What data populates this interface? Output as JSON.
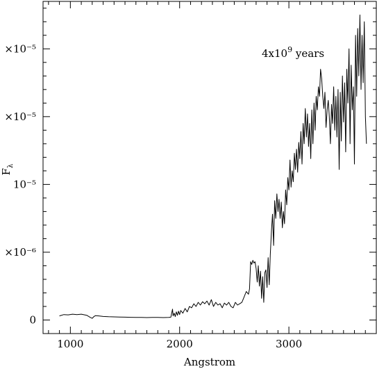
{
  "chart_data": {
    "type": "line",
    "annotation": "4x10^9 years",
    "xlabel": "Angstrom",
    "ylabel": "F_λ",
    "xlim": [
      750,
      3800
    ],
    "ylim": [
      -1e-06,
      2.35e-05
    ],
    "grid": false,
    "x_ticks": [
      1000,
      2000,
      3000
    ],
    "y_ticks": [
      0,
      5e-06,
      1e-05,
      1.5e-05,
      2e-05
    ],
    "x_tick_labels": [
      "1000",
      "2000",
      "3000"
    ],
    "y_tick_labels": [
      "0",
      "×10⁻⁶",
      "10⁻⁵",
      "×10⁻⁵",
      "×10⁻⁵"
    ],
    "series": [
      {
        "color": "#000000",
        "x": [
          900,
          940,
          980,
          1020,
          1060,
          1100,
          1150,
          1180,
          1200,
          1215,
          1230,
          1260,
          1300,
          1350,
          1400,
          1450,
          1500,
          1550,
          1600,
          1650,
          1700,
          1750,
          1800,
          1850,
          1900,
          1920,
          1935,
          1940,
          1950,
          1960,
          1970,
          1980,
          1990,
          2000,
          2010,
          2030,
          2050,
          2070,
          2090,
          2110,
          2130,
          2150,
          2170,
          2190,
          2210,
          2230,
          2250,
          2270,
          2290,
          2310,
          2330,
          2350,
          2370,
          2390,
          2410,
          2430,
          2450,
          2470,
          2490,
          2510,
          2530,
          2550,
          2570,
          2590,
          2610,
          2630,
          2640,
          2650,
          2660,
          2670,
          2680,
          2690,
          2700,
          2710,
          2720,
          2730,
          2740,
          2750,
          2760,
          2770,
          2780,
          2790,
          2800,
          2810,
          2820,
          2830,
          2840,
          2850,
          2860,
          2870,
          2880,
          2890,
          2900,
          2910,
          2920,
          2930,
          2940,
          2950,
          2960,
          2970,
          2980,
          2990,
          3000,
          3010,
          3020,
          3030,
          3040,
          3050,
          3060,
          3070,
          3080,
          3090,
          3100,
          3110,
          3120,
          3130,
          3140,
          3150,
          3160,
          3170,
          3180,
          3190,
          3200,
          3210,
          3220,
          3230,
          3240,
          3250,
          3260,
          3270,
          3280,
          3290,
          3300,
          3310,
          3320,
          3330,
          3340,
          3350,
          3360,
          3370,
          3380,
          3390,
          3400,
          3410,
          3420,
          3430,
          3440,
          3450,
          3460,
          3470,
          3480,
          3490,
          3500,
          3510,
          3520,
          3530,
          3540,
          3550,
          3560,
          3570,
          3580,
          3590,
          3600,
          3610,
          3620,
          3630,
          3640,
          3650,
          3660,
          3670,
          3680,
          3690,
          3700,
          3710
        ],
        "y": [
          3e-07,
          4e-07,
          3.8e-07,
          4.3e-07,
          4e-07,
          4.3e-07,
          3.5e-07,
          2e-07,
          1.2e-07,
          2.5e-07,
          3.2e-07,
          3e-07,
          2.6e-07,
          2.4e-07,
          2.3e-07,
          2.2e-07,
          2.1e-07,
          2e-07,
          1.9e-07,
          1.9e-07,
          1.8e-07,
          1.9e-07,
          1.9e-07,
          1.8e-07,
          1.9e-07,
          2.1e-07,
          8e-07,
          3e-07,
          5e-07,
          2.5e-07,
          6e-07,
          3.5e-07,
          6.5e-07,
          4e-07,
          7e-07,
          5e-07,
          8.5e-07,
          6e-07,
          1e-06,
          9e-07,
          1.2e-06,
          1e-06,
          1.3e-06,
          1.1e-06,
          1.35e-06,
          1.2e-06,
          1.4e-06,
          1.1e-06,
          1.5e-06,
          1e-06,
          1.3e-06,
          1.1e-06,
          1.2e-06,
          9e-07,
          1.25e-06,
          1.1e-06,
          1.3e-06,
          1e-06,
          9e-07,
          1.3e-06,
          1.1e-06,
          1.2e-06,
          1.3e-06,
          1.7e-06,
          2.1e-06,
          1.9e-06,
          2.3e-06,
          4.3e-06,
          4.1e-06,
          4.4e-06,
          4.2e-06,
          4.3e-06,
          3.8e-06,
          2.8e-06,
          4e-06,
          2.5e-06,
          3.6e-06,
          1.6e-06,
          3.2e-06,
          1.3e-06,
          3.5e-06,
          3.7e-06,
          2.4e-06,
          4.6e-06,
          2.6e-06,
          4.8e-06,
          6.5e-06,
          7.8e-06,
          5.5e-06,
          8.8e-06,
          7.5e-06,
          9.3e-06,
          8e-06,
          8.9e-06,
          7.5e-06,
          8.7e-06,
          6.8e-06,
          8e-06,
          7.1e-06,
          9.6e-06,
          8.5e-06,
          1.05e-05,
          9.6e-06,
          1.18e-05,
          9.8e-06,
          1.1e-05,
          1.02e-05,
          1.23e-05,
          1.11e-05,
          1.26e-05,
          1.09e-05,
          1.31e-05,
          1.19e-05,
          1.39e-05,
          1.15e-05,
          1.45e-05,
          1.3e-05,
          1.56e-05,
          1.35e-05,
          1.52e-05,
          1.28e-05,
          1.45e-05,
          1.19e-05,
          1.55e-05,
          1.3e-05,
          1.6e-05,
          1.4e-05,
          1.65e-05,
          1.55e-05,
          1.72e-05,
          1.65e-05,
          1.85e-05,
          1.78e-05,
          1.65e-05,
          1.56e-05,
          1.68e-05,
          1.42e-05,
          1.55e-05,
          1.62e-05,
          1.5e-05,
          1.3e-05,
          1.59e-05,
          1.45e-05,
          1.72e-05,
          1.4e-05,
          1.65e-05,
          1.35e-05,
          1.7e-05,
          1.11e-05,
          1.68e-05,
          1.32e-05,
          1.8e-05,
          1.46e-05,
          1.75e-05,
          1.24e-05,
          1.85e-05,
          1.6e-05,
          2e-05,
          1.3e-05,
          1.88e-05,
          1.55e-05,
          1.72e-05,
          1.15e-05,
          2.1e-05,
          1.65e-05,
          2.15e-05,
          1.8e-05,
          2.25e-05,
          1.7e-05,
          2.1e-05,
          1.75e-05,
          2.2e-05,
          1.5e-05,
          1.3e-05
        ]
      }
    ]
  }
}
